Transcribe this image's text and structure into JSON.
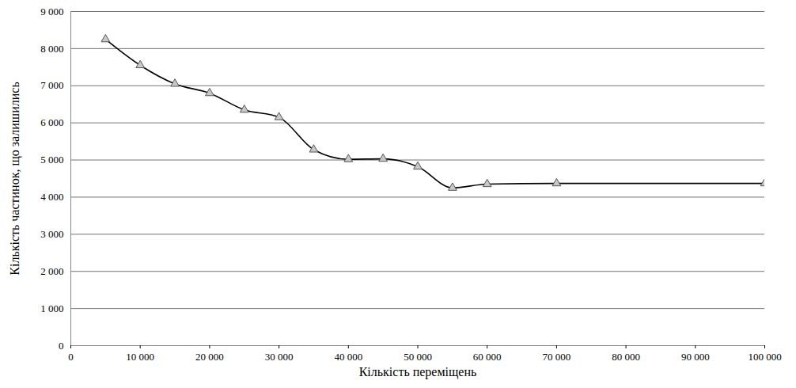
{
  "chart_data": {
    "type": "line",
    "x_label": "Кількість переміщень",
    "y_label": "Кількість частинок, що залишились",
    "x": [
      5000,
      10000,
      15000,
      20000,
      25000,
      30000,
      35000,
      40000,
      45000,
      50000,
      55000,
      60000,
      70000,
      100000
    ],
    "values": [
      8250,
      7550,
      7050,
      6800,
      6350,
      6150,
      5280,
      5020,
      5030,
      4820,
      4250,
      4350,
      4370,
      4370
    ],
    "color": "#000000",
    "marker": "triangle",
    "line_style": "solid",
    "grid": true,
    "xlim": [
      0,
      100000
    ],
    "xticks": [
      0,
      {
        "value": 10000,
        "label": "10 000"
      },
      {
        "value": 20000,
        "label": "20 000"
      },
      {
        "value": 30000,
        "label": "30 000"
      },
      {
        "value": 40000,
        "label": "40 000"
      },
      {
        "value": 50000,
        "label": "50 000"
      },
      {
        "value": 60000,
        "label": "60 000"
      },
      {
        "value": 70000,
        "label": "70 000"
      },
      {
        "value": 80000,
        "label": "80 000"
      },
      {
        "value": 90000,
        "label": "90 000"
      },
      {
        "value": 100000,
        "label": "100 000"
      }
    ],
    "ylim": [
      0,
      9000
    ],
    "yticks": [
      0,
      {
        "value": 1000,
        "label": "1 000"
      },
      {
        "value": 2000,
        "label": "2 000"
      },
      {
        "value": 3000,
        "label": "3 000"
      },
      {
        "value": 4000,
        "label": "4 000"
      },
      {
        "value": 5000,
        "label": "5 000"
      },
      {
        "value": 6000,
        "label": "6 000"
      },
      {
        "value": 7000,
        "label": "7 000"
      },
      {
        "value": 8000,
        "label": "8 000"
      },
      {
        "value": 9000,
        "label": "9 000"
      }
    ]
  }
}
